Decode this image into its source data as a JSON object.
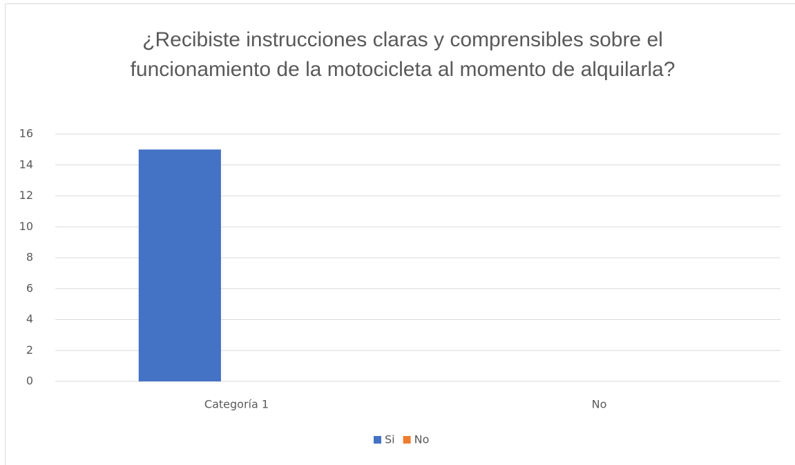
{
  "chart_data": {
    "type": "bar",
    "title": "¿Recibiste instrucciones claras y comprensibles sobre el funcionamiento de la motocicleta al momento de alquilarla?",
    "categories": [
      "Categoría 1",
      "No"
    ],
    "series": [
      {
        "name": "Si",
        "color": "#4472c4",
        "values": [
          15,
          0
        ]
      },
      {
        "name": "No",
        "color": "#ed7d31",
        "values": [
          0,
          0
        ]
      }
    ],
    "ylim": [
      0,
      16
    ],
    "yticks": [
      0,
      2,
      4,
      6,
      8,
      10,
      12,
      14,
      16
    ],
    "grid": true,
    "legend": "bottom"
  }
}
